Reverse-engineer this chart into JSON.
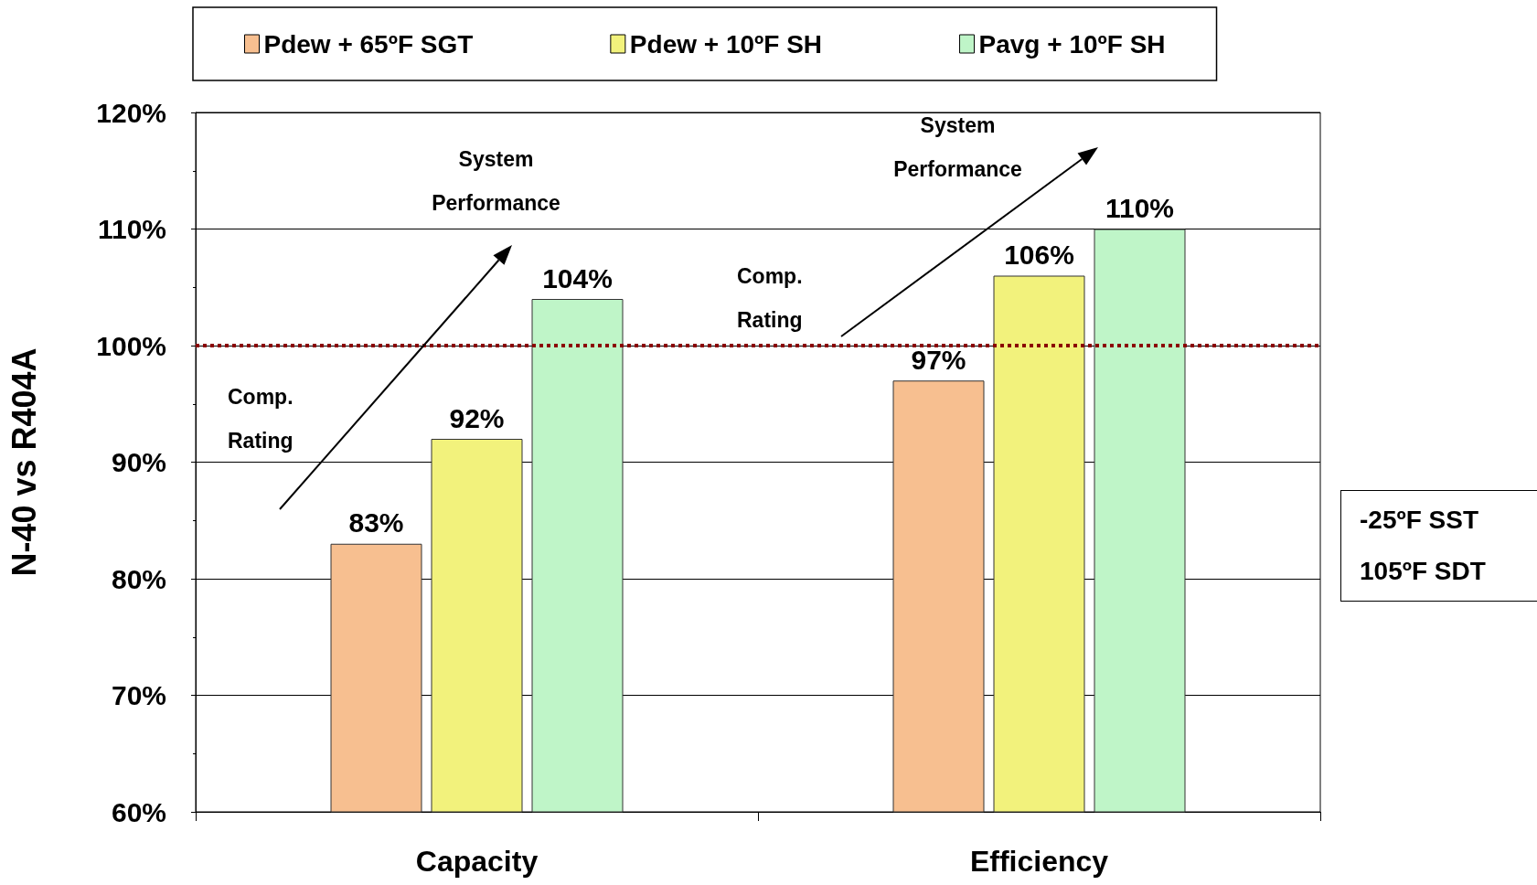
{
  "chart_data": {
    "type": "bar",
    "ylabel": "N-40 vs R404A",
    "categories": [
      "Capacity",
      "Efficiency"
    ],
    "series": [
      {
        "name": "Pdew + 65ºF SGT",
        "color": "#f7bf90",
        "values": [
          83,
          97
        ],
        "value_labels": [
          "83%",
          "97%"
        ]
      },
      {
        "name": "Pdew + 10ºF SH",
        "color": "#f2f27c",
        "values": [
          92,
          106
        ],
        "value_labels": [
          "92%",
          "106%"
        ]
      },
      {
        "name": "Pavg + 10ºF SH",
        "color": "#bff5c8",
        "values": [
          104,
          110
        ],
        "value_labels": [
          "104%",
          "110%"
        ]
      }
    ],
    "ylim": [
      60,
      120
    ],
    "yticks": [
      {
        "value": 60,
        "label": "60%"
      },
      {
        "value": 70,
        "label": "70%"
      },
      {
        "value": 80,
        "label": "80%"
      },
      {
        "value": 90,
        "label": "90%"
      },
      {
        "value": 100,
        "label": "100%"
      },
      {
        "value": 110,
        "label": "110%"
      },
      {
        "value": 120,
        "label": "120%"
      }
    ],
    "grid": "y",
    "legend": "top",
    "ref_lines": [
      {
        "axis": "y",
        "value": 100,
        "color": "#8b0000",
        "line_style": "dotted"
      }
    ],
    "annotations": [
      "Comp. Rating",
      "System Performance",
      "Comp. Rating",
      "System Performance",
      "-25ºF SST 105ºF SDT"
    ]
  }
}
